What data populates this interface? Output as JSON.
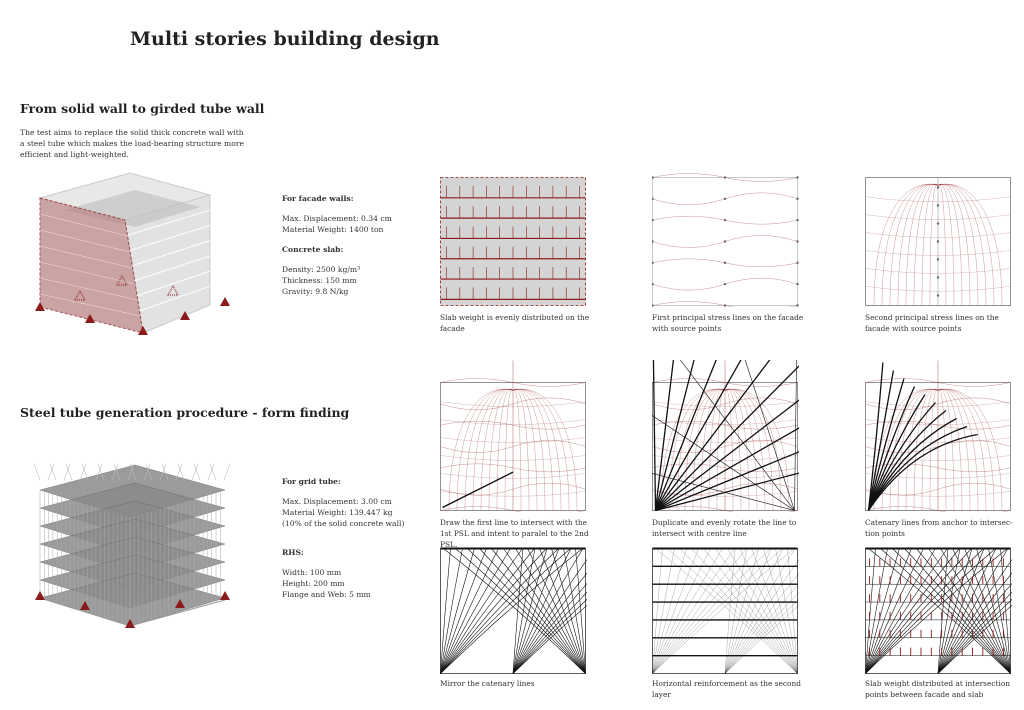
{
  "title": "Multi stories building design",
  "section1": {
    "heading": "From solid wall to girded tube wall",
    "description": "The test aims to replace the solid thick concrete wall with a steel tube which makes the load-bearing structure more efficient and light-weighted.",
    "specs": {
      "facade_heading": "For facade walls:",
      "facade_lines": [
        "Max. Displacement: 0.34 cm",
        "Material Weight: 1400 ton"
      ],
      "slab_heading": "Concrete slab:",
      "slab_lines": [
        "Density: 2500 kg/m³",
        "Thickness: 150 mm",
        "Gravity: 9.8 N/kg"
      ]
    }
  },
  "section2": {
    "heading": "Steel tube generation procedure - form finding",
    "specs": {
      "tube_heading": "For grid tube:",
      "tube_lines": [
        "Max. Displacement: 3.00 cm",
        "Material Weight: 139.447 kg",
        "(10% of the solid concrete wall)"
      ],
      "rhs_heading": "RHS:",
      "rhs_lines": [
        "Width: 100 mm",
        "Height: 200 mm",
        "Flange and Web: 5 mm"
      ]
    }
  },
  "colors": {
    "accent": "#8b1a1a",
    "facade": "#b98585",
    "grey": "#cfcfcf"
  },
  "panels": [
    {
      "caption": "Slab weight is evenly distributed on the facade"
    },
    {
      "caption": "First principal stress lines on the facade with source points"
    },
    {
      "caption": "Second principal stress lines on the facade with source points"
    },
    {
      "caption": "Draw the first line to intersect with the 1st PSL and intent to paralel to the 2nd PSL."
    },
    {
      "caption": "Duplicate and evenly rotate the line to intersect with centre line"
    },
    {
      "caption": "Catenary lines from anchor to intersec-tion points"
    },
    {
      "caption": "Mirror the catenary lines"
    },
    {
      "caption": "Horizontal reinforcement as the second layer"
    },
    {
      "caption": "Slab weight distributed at intersection points between facade and slab"
    }
  ]
}
